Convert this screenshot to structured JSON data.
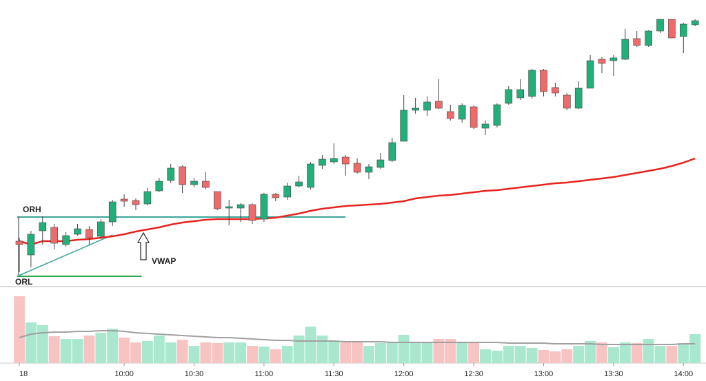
{
  "chart_data": {
    "type": "candlestick",
    "categories": [
      "18",
      null,
      null,
      null,
      null,
      null,
      null,
      null,
      null,
      "10:00",
      null,
      null,
      null,
      null,
      null,
      "10:30",
      null,
      null,
      null,
      null,
      null,
      "11:00",
      null,
      null,
      null,
      null,
      null,
      "11:30",
      null,
      null,
      null,
      null,
      null,
      "12:00",
      null,
      null,
      null,
      null,
      null,
      "12:30",
      null,
      null,
      null,
      null,
      null,
      "13:00",
      null,
      null,
      null,
      null,
      null,
      "13:30",
      null,
      null,
      null,
      null,
      null,
      "14:00",
      null
    ],
    "open": [
      80,
      60,
      95,
      100,
      75,
      90,
      97,
      87,
      108,
      141,
      139,
      134,
      153,
      168,
      188,
      162,
      167,
      152,
      128,
      128,
      133,
      112,
      148,
      144,
      160,
      158,
      190,
      195,
      202,
      193,
      180,
      187,
      197,
      225,
      270,
      270,
      283,
      268,
      257,
      275,
      244,
      248,
      280,
      288,
      290,
      328,
      303,
      292,
      273,
      302,
      344,
      342,
      344,
      374,
      364,
      385,
      402,
      377,
      394
    ],
    "high": [
      85,
      95,
      116,
      105,
      93,
      105,
      102,
      112,
      140,
      148,
      142,
      157,
      172,
      192,
      190,
      172,
      180,
      152,
      140,
      135,
      135,
      150,
      150,
      165,
      175,
      195,
      205,
      222,
      205,
      200,
      192,
      208,
      230,
      292,
      288,
      290,
      315,
      278,
      280,
      277,
      255,
      280,
      305,
      315,
      330,
      330,
      310,
      295,
      312,
      350,
      347,
      350,
      388,
      385,
      386,
      402,
      402,
      397,
      402
    ],
    "low": [
      35,
      42,
      75,
      68,
      72,
      88,
      75,
      83,
      102,
      130,
      125,
      132,
      151,
      164,
      150,
      158,
      155,
      125,
      103,
      108,
      105,
      108,
      138,
      140,
      158,
      155,
      185,
      192,
      175,
      178,
      170,
      185,
      195,
      225,
      265,
      262,
      272,
      255,
      252,
      243,
      234,
      245,
      278,
      285,
      287,
      290,
      290,
      270,
      272,
      302,
      324,
      320,
      343,
      362,
      362,
      382,
      374,
      353,
      392
    ],
    "close": [
      75,
      90,
      107,
      77,
      88,
      98,
      85,
      108,
      137,
      138,
      133,
      152,
      167,
      186,
      162,
      167,
      158,
      127,
      130,
      133,
      110,
      148,
      143,
      160,
      166,
      192,
      199,
      200,
      192,
      180,
      188,
      198,
      223,
      270,
      273,
      282,
      273,
      258,
      277,
      245,
      250,
      278,
      300,
      300,
      328,
      297,
      295,
      273,
      302,
      342,
      338,
      346,
      373,
      364,
      385,
      402,
      375,
      395,
      400
    ],
    "vwap": [
      80,
      75,
      80,
      80,
      80,
      82,
      83,
      85,
      87,
      90,
      94,
      97,
      100,
      104,
      107,
      109,
      111,
      112,
      112,
      112,
      112,
      113,
      114,
      117,
      120,
      124,
      127,
      129,
      131,
      132,
      133,
      134,
      136,
      138,
      142,
      144,
      146,
      147,
      149,
      151,
      153,
      154,
      156,
      158,
      160,
      162,
      164,
      165,
      167,
      169,
      171,
      173,
      176,
      179,
      182,
      185,
      189,
      194,
      200
    ],
    "volume": [
      97,
      59,
      55,
      39,
      35,
      35,
      40,
      44,
      50,
      37,
      30,
      32,
      40,
      30,
      34,
      25,
      30,
      29,
      30,
      30,
      25,
      24,
      20,
      25,
      40,
      53,
      40,
      31,
      30,
      30,
      25,
      29,
      31,
      41,
      30,
      30,
      35,
      35,
      30,
      30,
      20,
      18,
      25,
      25,
      22,
      19,
      17,
      20,
      25,
      32,
      30,
      23,
      30,
      29,
      35,
      25,
      25,
      29,
      42
    ],
    "volume_ma": [
      37,
      42,
      44,
      45,
      45,
      46,
      46,
      47,
      47,
      46,
      44,
      43,
      42,
      41,
      40,
      39,
      38,
      37,
      37,
      36,
      35,
      34,
      33,
      33,
      32,
      32,
      32,
      32,
      31,
      31,
      31,
      31,
      30,
      30,
      30,
      30,
      30,
      30,
      30,
      30,
      30,
      30,
      29,
      29,
      29,
      29,
      28,
      28,
      28,
      28,
      27,
      27,
      27,
      27,
      27,
      27,
      27,
      28,
      28
    ],
    "ylim": [
      20,
      420
    ],
    "volume_ylim": [
      0,
      110
    ],
    "up_color": "#22b07a",
    "down_color": "#ef6a6a",
    "vwap_color": "#e8231d",
    "volume_up_color": "#a9e7cf",
    "volume_down_color": "#f8c3c3",
    "volume_ma_color": "#a0a0a0",
    "levels": [
      {
        "text": "ORH",
        "value": 115,
        "color": "#3aa59a"
      },
      {
        "text": "ORL",
        "value": 29,
        "color": "#2ca84a"
      }
    ],
    "trendline": {
      "x": [
        0,
        8
      ],
      "y": [
        29,
        89
      ],
      "color": "#3aa59a"
    },
    "annotation": "VWAP"
  }
}
